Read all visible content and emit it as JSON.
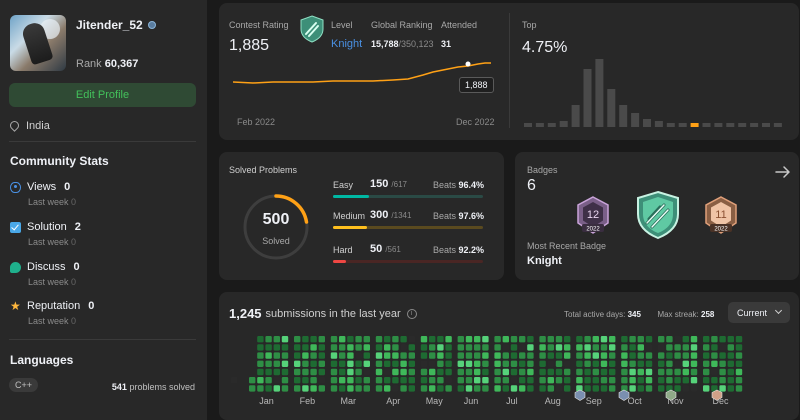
{
  "profile": {
    "username": "Jitender_52",
    "rank_label": "Rank",
    "rank_value": "60,367",
    "edit_label": "Edit Profile",
    "location": "India"
  },
  "community": {
    "title": "Community Stats",
    "items": [
      {
        "icon": "eye-icon",
        "label": "Views",
        "value": "0",
        "last_week_label": "Last week",
        "last_week_value": "0",
        "color": "#4a90e2"
      },
      {
        "icon": "solution-icon",
        "label": "Solution",
        "value": "2",
        "last_week_label": "Last week",
        "last_week_value": "0",
        "color": "#4aa8e8"
      },
      {
        "icon": "discuss-icon",
        "label": "Discuss",
        "value": "0",
        "last_week_label": "Last week",
        "last_week_value": "0",
        "color": "#1fb08c"
      },
      {
        "icon": "star-icon",
        "label": "Reputation",
        "value": "0",
        "last_week_label": "Last week",
        "last_week_value": "0",
        "color": "#ffb73d"
      }
    ]
  },
  "languages": {
    "title": "Languages",
    "items": [
      {
        "name": "C++",
        "count": "541",
        "suffix": "problems solved"
      }
    ]
  },
  "contest": {
    "rating_label": "Contest Rating",
    "rating_value": "1,885",
    "level_label": "Level",
    "level_value": "Knight",
    "global_label": "Global Ranking",
    "global_value": "15,788",
    "global_total": "/350,123",
    "attended_label": "Attended",
    "attended_value": "31",
    "top_label": "Top",
    "top_value": "4.75%",
    "tooltip": "1,888",
    "x_start": "Feb 2022",
    "x_end": "Dec 2022"
  },
  "solved": {
    "title": "Solved Problems",
    "total": "500",
    "total_label": "Solved",
    "beats_label": "Beats",
    "levels": [
      {
        "name": "Easy",
        "count": "150",
        "total": "/617",
        "beats": "96.4%",
        "color": "#00b8a3",
        "track": "#2a4a45",
        "fraction": 0.243
      },
      {
        "name": "Medium",
        "count": "300",
        "total": "/1341",
        "beats": "97.6%",
        "color": "#ffc01e",
        "track": "#5a4a1f",
        "fraction": 0.224
      },
      {
        "name": "Hard",
        "count": "50",
        "total": "/561",
        "beats": "92.2%",
        "color": "#ef4743",
        "track": "#4a2624",
        "fraction": 0.089
      }
    ]
  },
  "badges": {
    "label": "Badges",
    "count": "6",
    "recent_label": "Most Recent Badge",
    "recent_name": "Knight",
    "items": [
      {
        "icon": "badge-dec-2022-icon",
        "month": "12",
        "year": "2022",
        "color": "#c9a3d9"
      },
      {
        "icon": "knight-badge-icon",
        "color": "#5fc9a3"
      },
      {
        "icon": "badge-nov-2022-icon",
        "month": "11",
        "year": "2022",
        "color": "#e0a07a"
      }
    ]
  },
  "submissions": {
    "count": "1,245",
    "label": "submissions in the last year",
    "active_label": "Total active days:",
    "active_value": "345",
    "streak_label": "Max streak:",
    "streak_value": "258",
    "select_value": "Current",
    "months": [
      "Jan",
      "Feb",
      "Mar",
      "Apr",
      "May",
      "Jun",
      "Jul",
      "Aug",
      "Sep",
      "Oct",
      "Nov",
      "Dec"
    ]
  }
}
